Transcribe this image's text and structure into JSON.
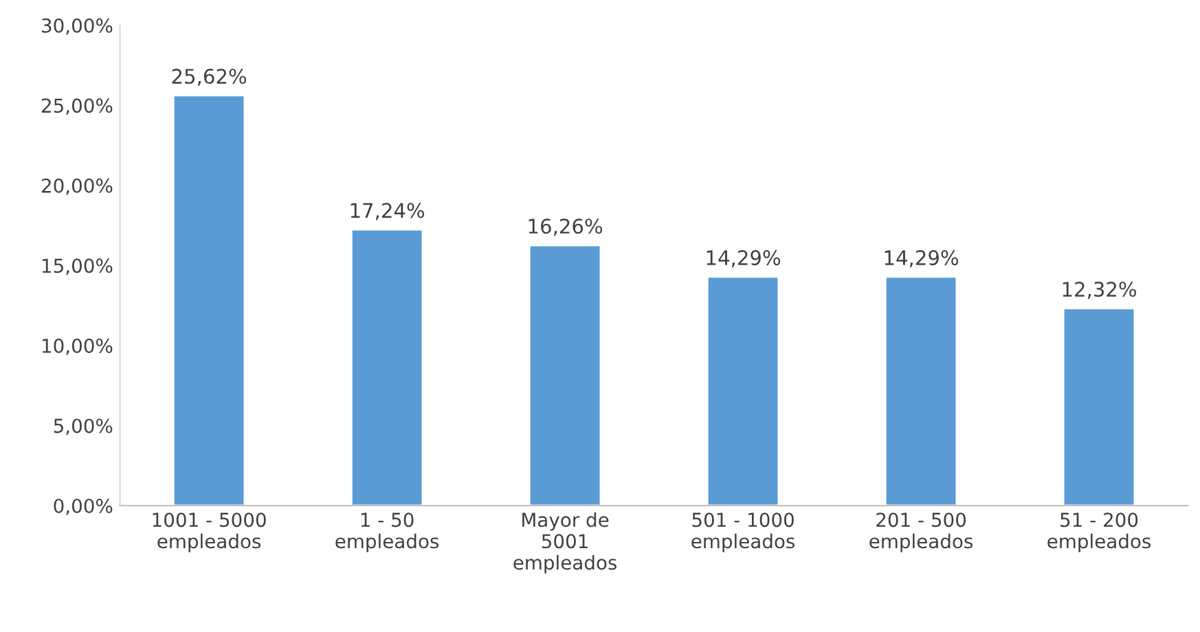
{
  "chart_data": {
    "type": "bar",
    "categories": [
      "1001 - 5000\nempleados",
      "1 - 50\nempleados",
      "Mayor de\n5001\nempleados",
      "501 - 1000\nempleados",
      "201 - 500\nempleados",
      "51 - 200\nempleados"
    ],
    "values": [
      25.62,
      17.24,
      16.26,
      14.29,
      14.29,
      12.32
    ],
    "value_labels": [
      "25,62%",
      "17,24%",
      "16,26%",
      "14,29%",
      "14,29%",
      "12,32%"
    ],
    "color": "#5b9bd5",
    "ylim": [
      0,
      30
    ],
    "yticks": [
      {
        "value": 0,
        "label": "0,00%"
      },
      {
        "value": 5,
        "label": "5,00%"
      },
      {
        "value": 10,
        "label": "10,00%"
      },
      {
        "value": 15,
        "label": "15,00%"
      },
      {
        "value": 20,
        "label": "20,00%"
      },
      {
        "value": 25,
        "label": "25,00%"
      },
      {
        "value": 30,
        "label": "30,00%"
      }
    ],
    "grid": false
  }
}
